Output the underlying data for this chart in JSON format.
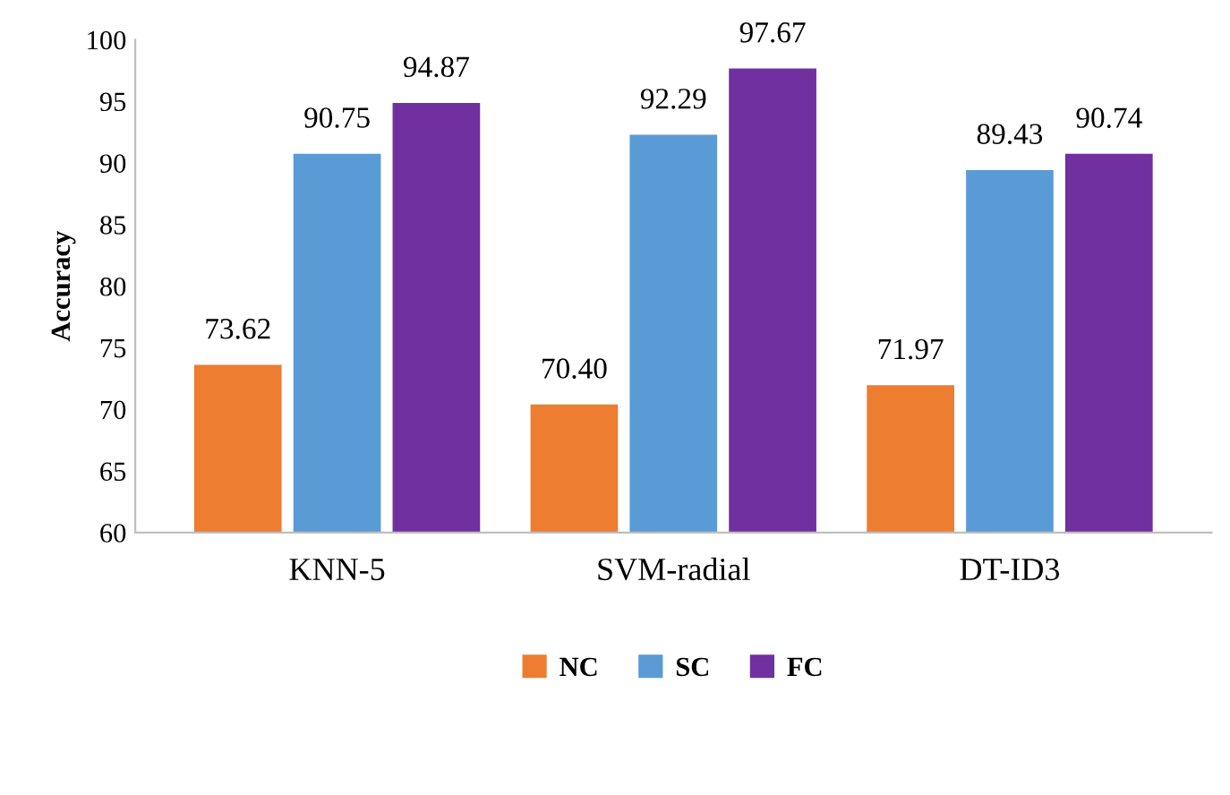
{
  "chart_data": {
    "type": "bar",
    "ylabel": "Accuracy",
    "categories": [
      "KNN-5",
      "SVM-radial",
      "DT-ID3"
    ],
    "series": [
      {
        "name": "NC",
        "color": "#ed7d31",
        "values": [
          73.62,
          70.4,
          71.97
        ],
        "value_labels": [
          "73.62",
          "70.40",
          "71.97"
        ]
      },
      {
        "name": "SC",
        "color": "#5b9bd5",
        "values": [
          90.75,
          92.29,
          89.43
        ],
        "value_labels": [
          "90.75",
          "92.29",
          "89.43"
        ]
      },
      {
        "name": "FC",
        "color": "#7030a0",
        "values": [
          94.87,
          97.67,
          90.74
        ],
        "value_labels": [
          "94.87",
          "97.67",
          "90.74"
        ]
      }
    ],
    "ylim": [
      60,
      100
    ],
    "yticks": [
      60,
      65,
      70,
      75,
      80,
      85,
      90,
      95,
      100
    ],
    "grid": false,
    "legend": "bottom"
  }
}
